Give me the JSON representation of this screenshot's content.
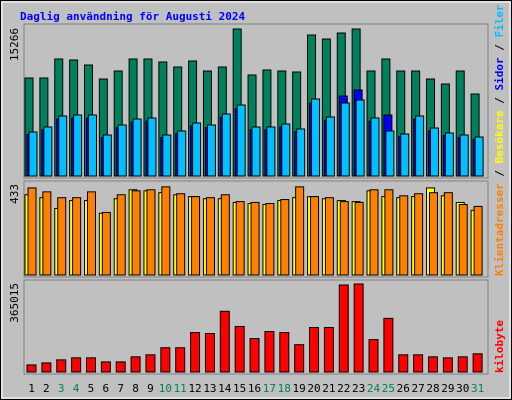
{
  "separator": " / ",
  "chart_data": [
    {
      "type": "bar",
      "title": "Daglig användning för Augusti 2024",
      "ylim": [
        0,
        15266
      ],
      "yticks": [
        15266
      ],
      "series": [
        {
          "name": "Träffar",
          "color": "#00805c",
          "values": [
            10177,
            10177,
            12150,
            12047,
            11527,
            10073,
            10904,
            12150,
            12150,
            11839,
            11320,
            11943,
            10904,
            11320,
            15266,
            10489,
            11008,
            10904,
            10800,
            14643,
            14227,
            14851,
            15266,
            10904,
            12150,
            10904,
            10904,
            10073,
            9554,
            10904,
            8516
          ]
        },
        {
          "name": "Sidor",
          "color": "#0000ff",
          "values": [
            4300,
            4800,
            5900,
            6000,
            6000,
            4000,
            5000,
            5600,
            5700,
            4000,
            4400,
            5200,
            5000,
            6100,
            7000,
            4800,
            4800,
            5100,
            4600,
            7600,
            5800,
            8308,
            8931,
            5700,
            6335,
            4100,
            5900,
            4700,
            4200,
            4000,
            3800
          ]
        },
        {
          "name": "Filer",
          "color": "#00c0ff",
          "values": [
            4569,
            5089,
            6231,
            6335,
            6335,
            4258,
            5296,
            5919,
            6023,
            4258,
            4673,
            5504,
            5296,
            6439,
            7373,
            5089,
            5089,
            5400,
            4881,
            7996,
            6127,
            7581,
            7893,
            6023,
            4673,
            4362,
            6231,
            4985,
            4466,
            4258,
            4050
          ]
        }
      ]
    },
    {
      "type": "bar",
      "ylim": [
        0,
        433
      ],
      "yticks": [
        433
      ],
      "series": [
        {
          "name": "Besökare",
          "color": "#ffff00",
          "values": [
            386,
            372,
            320,
            358,
            358,
            297,
            367,
            410,
            405,
            396,
            386,
            377,
            367,
            367,
            349,
            344,
            339,
            358,
            372,
            377,
            367,
            358,
            353,
            405,
            377,
            372,
            377,
            419,
            381,
            349,
            311
          ]
        },
        {
          "name": "Klientadresser",
          "color": "#ff8000",
          "values": [
            419,
            400,
            372,
            372,
            400,
            301,
            386,
            405,
            410,
            424,
            391,
            377,
            372,
            386,
            353,
            349,
            344,
            363,
            424,
            377,
            372,
            353,
            349,
            410,
            410,
            381,
            391,
            396,
            396,
            339,
            330
          ]
        }
      ]
    },
    {
      "type": "bar",
      "ylim": [
        0,
        365015
      ],
      "yticks": [
        365015
      ],
      "categories": [
        "1",
        "2",
        "3",
        "4",
        "5",
        "6",
        "7",
        "8",
        "9",
        "10",
        "11",
        "12",
        "13",
        "14",
        "15",
        "16",
        "17",
        "18",
        "19",
        "20",
        "21",
        "22",
        "23",
        "24",
        "25",
        "26",
        "27",
        "28",
        "29",
        "30",
        "31"
      ],
      "category_colors": [
        "#000000",
        "#000000",
        "#00805c",
        "#00805c",
        "#000000",
        "#000000",
        "#000000",
        "#000000",
        "#000000",
        "#00805c",
        "#00805c",
        "#000000",
        "#000000",
        "#000000",
        "#000000",
        "#000000",
        "#00805c",
        "#00805c",
        "#000000",
        "#000000",
        "#000000",
        "#000000",
        "#000000",
        "#00805c",
        "#00805c",
        "#000000",
        "#000000",
        "#000000",
        "#000000",
        "#000000",
        "#00805c"
      ],
      "series": [
        {
          "name": "kilobyte",
          "color": "#ff0000",
          "values": [
            29372,
            37764,
            50352,
            58744,
            58744,
            41960,
            41960,
            62940,
            71332,
            100704,
            100704,
            163644,
            159448,
            251760,
            188820,
            138468,
            167840,
            163644,
            113292,
            184624,
            184624,
            360856,
            365015,
            134272,
            222388,
            71332,
            71332,
            62940,
            58744,
            62940,
            75528
          ]
        }
      ]
    }
  ]
}
